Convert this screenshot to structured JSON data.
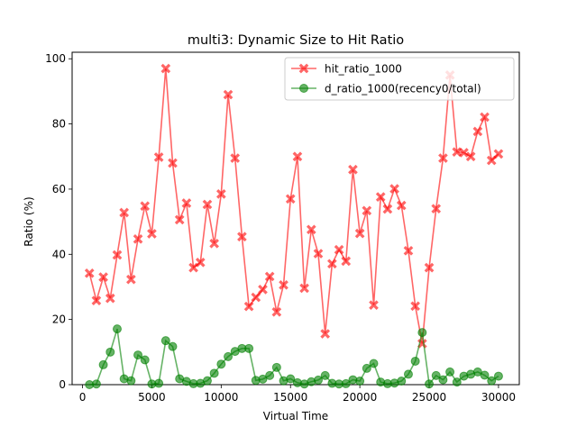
{
  "chart_data": {
    "type": "line",
    "title": "multi3: Dynamic Size to Hit Ratio",
    "xlabel": "Virtual Time",
    "ylabel": "Ratio (%)",
    "xlim": [
      -750,
      31500
    ],
    "ylim": [
      0,
      102
    ],
    "xticks": [
      0,
      5000,
      10000,
      15000,
      20000,
      25000,
      30000
    ],
    "yticks": [
      0,
      20,
      40,
      60,
      80,
      100
    ],
    "grid": false,
    "legend_position": "top-right",
    "x": [
      500,
      1000,
      1500,
      2000,
      2500,
      3000,
      3500,
      4000,
      4500,
      5000,
      5500,
      6000,
      6500,
      7000,
      7500,
      8000,
      8500,
      9000,
      9500,
      10000,
      10500,
      11000,
      11500,
      12000,
      12500,
      13000,
      13500,
      14000,
      14500,
      15000,
      15500,
      16000,
      16500,
      17000,
      17500,
      18000,
      18500,
      19000,
      19500,
      20000,
      20500,
      21000,
      21500,
      22000,
      22500,
      23000,
      23500,
      24000,
      24500,
      25000,
      25500,
      26000,
      26500,
      27000,
      27500,
      28000,
      28500,
      29000,
      29500,
      30000
    ],
    "series": [
      {
        "name": "hit_ratio_1000",
        "color": "#ff0000",
        "marker": "X",
        "values": [
          34.2,
          25.8,
          33.0,
          26.5,
          39.8,
          52.8,
          32.3,
          44.7,
          54.8,
          46.3,
          69.8,
          97.0,
          68.0,
          50.6,
          55.7,
          35.9,
          37.5,
          55.3,
          43.3,
          58.5,
          89.0,
          69.5,
          45.4,
          24.0,
          26.8,
          29.2,
          33.2,
          22.3,
          30.6,
          57.0,
          70.0,
          29.6,
          47.6,
          40.2,
          15.6,
          37.1,
          41.4,
          37.9,
          66.0,
          46.4,
          53.4,
          24.4,
          57.6,
          53.9,
          60.1,
          55.0,
          41.1,
          24.1,
          12.6,
          35.9,
          54.0,
          69.5,
          95.0,
          71.4,
          71.2,
          70.0,
          77.7,
          82.1,
          68.8,
          70.8
        ]
      },
      {
        "name": "d_ratio_1000(recency0/total)",
        "color": "#008000",
        "marker": "o",
        "values": [
          0.0,
          0.2,
          6.1,
          10.0,
          17.1,
          1.8,
          1.2,
          9.1,
          7.6,
          0.2,
          0.4,
          13.5,
          11.7,
          1.8,
          1.0,
          0.3,
          0.4,
          1.2,
          3.5,
          6.3,
          8.6,
          10.2,
          11.1,
          11.1,
          1.3,
          1.7,
          2.8,
          5.3,
          1.2,
          1.8,
          0.6,
          0.2,
          0.9,
          1.4,
          2.8,
          0.4,
          0.2,
          0.3,
          1.5,
          1.1,
          5.0,
          6.5,
          0.8,
          0.3,
          0.5,
          1.1,
          3.2,
          7.2,
          16.0,
          0.2,
          2.8,
          1.5,
          3.9,
          0.8,
          2.6,
          3.2,
          3.9,
          2.9,
          1.2,
          2.6
        ]
      }
    ]
  }
}
